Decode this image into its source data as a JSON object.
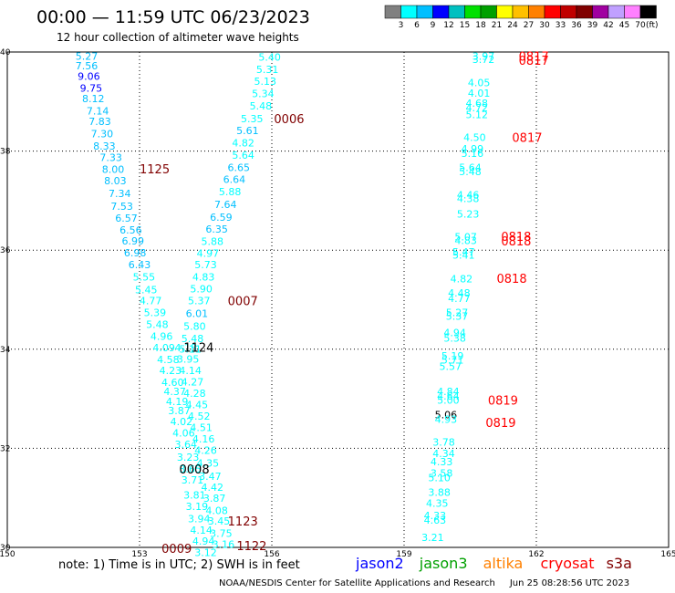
{
  "header": {
    "title": "00:00 — 11:59 UTC 06/23/2023",
    "subtitle": "12 hour collection of altimeter wave heights"
  },
  "legend": {
    "colors": [
      "#808080",
      "#00ffff",
      "#00bfff",
      "#0000ff",
      "#00c0c0",
      "#00e000",
      "#00a000",
      "#ffff00",
      "#ffc000",
      "#ff8000",
      "#ff0000",
      "#c00000",
      "#800000",
      "#a000a0",
      "#c0a0ff",
      "#ff80ff",
      "#000000"
    ],
    "labels": [
      "3",
      "6",
      "9",
      "12",
      "15",
      "18",
      "21",
      "24",
      "27",
      "30",
      "33",
      "36",
      "39",
      "42",
      "45",
      "70"
    ],
    "unit": "(ft)"
  },
  "chart_data": {
    "type": "map-track-labels",
    "lon_range": [
      150,
      165
    ],
    "lat_range": [
      30,
      40
    ],
    "x_ticks": [
      "150",
      "153",
      "156",
      "159",
      "162",
      "165"
    ],
    "y_ticks": [
      "40",
      "38",
      "36",
      "34",
      "32",
      "30"
    ],
    "points": [
      {
        "lon": 151.8,
        "lat": 39.92,
        "v": "5.27",
        "c": "#00bfff"
      },
      {
        "lon": 151.8,
        "lat": 39.72,
        "v": "7.56",
        "c": "#00bfff"
      },
      {
        "lon": 151.85,
        "lat": 39.51,
        "v": "9.06",
        "c": "#0000ff"
      },
      {
        "lon": 151.9,
        "lat": 39.27,
        "v": "9.75",
        "c": "#0000ff"
      },
      {
        "lon": 151.95,
        "lat": 39.06,
        "v": "8.12",
        "c": "#00bfff"
      },
      {
        "lon": 152.05,
        "lat": 38.81,
        "v": "7.14",
        "c": "#00bfff"
      },
      {
        "lon": 152.1,
        "lat": 38.6,
        "v": "7.83",
        "c": "#00bfff"
      },
      {
        "lon": 152.15,
        "lat": 38.35,
        "v": "7.30",
        "c": "#00bfff"
      },
      {
        "lon": 152.2,
        "lat": 38.1,
        "v": "8.33",
        "c": "#00bfff"
      },
      {
        "lon": 152.35,
        "lat": 37.87,
        "v": "7.33",
        "c": "#00bfff"
      },
      {
        "lon": 152.4,
        "lat": 37.63,
        "v": "8.00",
        "c": "#00bfff"
      },
      {
        "lon": 152.45,
        "lat": 37.4,
        "v": "8.03",
        "c": "#00bfff"
      },
      {
        "lon": 152.55,
        "lat": 37.15,
        "v": "7.34",
        "c": "#00bfff"
      },
      {
        "lon": 152.6,
        "lat": 36.89,
        "v": "7.53",
        "c": "#00bfff"
      },
      {
        "lon": 152.7,
        "lat": 36.65,
        "v": "6.57",
        "c": "#00bfff"
      },
      {
        "lon": 152.8,
        "lat": 36.41,
        "v": "6.56",
        "c": "#00bfff"
      },
      {
        "lon": 152.85,
        "lat": 36.19,
        "v": "6.99",
        "c": "#00bfff"
      },
      {
        "lon": 152.9,
        "lat": 35.95,
        "v": "6.98",
        "c": "#00bfff"
      },
      {
        "lon": 153.0,
        "lat": 35.71,
        "v": "6.43",
        "c": "#00bfff"
      },
      {
        "lon": 153.1,
        "lat": 35.46,
        "v": "5.55",
        "c": "#00ffff"
      },
      {
        "lon": 153.15,
        "lat": 35.2,
        "v": "5.45",
        "c": "#00ffff"
      },
      {
        "lon": 153.25,
        "lat": 34.98,
        "v": "4.77",
        "c": "#00ffff"
      },
      {
        "lon": 153.35,
        "lat": 34.74,
        "v": "5.39",
        "c": "#00ffff"
      },
      {
        "lon": 153.4,
        "lat": 34.5,
        "v": "5.48",
        "c": "#00ffff"
      },
      {
        "lon": 153.5,
        "lat": 34.26,
        "v": "4.96",
        "c": "#00ffff"
      },
      {
        "lon": 153.55,
        "lat": 34.03,
        "v": "4.09",
        "c": "#00ffff"
      },
      {
        "lon": 153.65,
        "lat": 33.79,
        "v": "4.58",
        "c": "#00ffff"
      },
      {
        "lon": 153.7,
        "lat": 33.57,
        "v": "4.23",
        "c": "#00ffff"
      },
      {
        "lon": 153.75,
        "lat": 33.33,
        "v": "4.60",
        "c": "#00ffff"
      },
      {
        "lon": 153.8,
        "lat": 33.15,
        "v": "4.37",
        "c": "#00ffff"
      },
      {
        "lon": 153.85,
        "lat": 32.95,
        "v": "4.19",
        "c": "#00ffff"
      },
      {
        "lon": 153.9,
        "lat": 32.76,
        "v": "3.87",
        "c": "#00ffff"
      },
      {
        "lon": 153.95,
        "lat": 32.54,
        "v": "4.02",
        "c": "#00ffff"
      },
      {
        "lon": 154.0,
        "lat": 32.31,
        "v": "4.06",
        "c": "#00ffff"
      },
      {
        "lon": 154.05,
        "lat": 32.08,
        "v": "3.64",
        "c": "#00ffff"
      },
      {
        "lon": 154.1,
        "lat": 31.82,
        "v": "3.23",
        "c": "#00ffff"
      },
      {
        "lon": 154.15,
        "lat": 31.58,
        "v": "3.65",
        "c": "#00ffff"
      },
      {
        "lon": 154.2,
        "lat": 31.36,
        "v": "3.71",
        "c": "#00ffff"
      },
      {
        "lon": 154.25,
        "lat": 31.06,
        "v": "3.81",
        "c": "#00ffff"
      },
      {
        "lon": 154.3,
        "lat": 30.83,
        "v": "3.19",
        "c": "#00ffff"
      },
      {
        "lon": 154.35,
        "lat": 30.58,
        "v": "3.94",
        "c": "#00ffff"
      },
      {
        "lon": 154.4,
        "lat": 30.35,
        "v": "4.14",
        "c": "#00ffff"
      },
      {
        "lon": 154.45,
        "lat": 30.13,
        "v": "4.94",
        "c": "#00ffff"
      },
      {
        "lon": 154.5,
        "lat": 29.9,
        "v": "3.12",
        "c": "#00ffff"
      },
      {
        "lon": 154.05,
        "lat": 34.03,
        "v": "4.18",
        "c": "#00ffff"
      },
      {
        "lon": 154.1,
        "lat": 33.8,
        "v": "3.95",
        "c": "#00ffff"
      },
      {
        "lon": 154.15,
        "lat": 33.57,
        "v": "4.14",
        "c": "#00ffff"
      },
      {
        "lon": 154.2,
        "lat": 33.34,
        "v": "4.27",
        "c": "#00ffff"
      },
      {
        "lon": 154.25,
        "lat": 33.11,
        "v": "4.28",
        "c": "#00ffff"
      },
      {
        "lon": 154.3,
        "lat": 32.88,
        "v": "4.45",
        "c": "#00ffff"
      },
      {
        "lon": 154.35,
        "lat": 32.65,
        "v": "4.52",
        "c": "#00ffff"
      },
      {
        "lon": 154.4,
        "lat": 32.42,
        "v": "4.51",
        "c": "#00ffff"
      },
      {
        "lon": 154.45,
        "lat": 32.19,
        "v": "4.16",
        "c": "#00ffff"
      },
      {
        "lon": 154.5,
        "lat": 31.96,
        "v": "4.26",
        "c": "#00ffff"
      },
      {
        "lon": 154.55,
        "lat": 31.7,
        "v": "4.35",
        "c": "#00ffff"
      },
      {
        "lon": 154.6,
        "lat": 31.44,
        "v": "3.47",
        "c": "#00ffff"
      },
      {
        "lon": 154.65,
        "lat": 31.22,
        "v": "4.42",
        "c": "#00ffff"
      },
      {
        "lon": 154.7,
        "lat": 30.99,
        "v": "3.87",
        "c": "#00ffff"
      },
      {
        "lon": 154.75,
        "lat": 30.75,
        "v": "4.08",
        "c": "#00ffff"
      },
      {
        "lon": 154.8,
        "lat": 30.53,
        "v": "3.45",
        "c": "#00ffff"
      },
      {
        "lon": 154.85,
        "lat": 30.29,
        "v": "3.75",
        "c": "#00ffff"
      },
      {
        "lon": 154.9,
        "lat": 30.06,
        "v": "3.16",
        "c": "#00ffff"
      },
      {
        "lon": 155.95,
        "lat": 39.9,
        "v": "5.40",
        "c": "#00ffff"
      },
      {
        "lon": 155.9,
        "lat": 39.65,
        "v": "5.31",
        "c": "#00ffff"
      },
      {
        "lon": 155.85,
        "lat": 39.41,
        "v": "5.13",
        "c": "#00ffff"
      },
      {
        "lon": 155.8,
        "lat": 39.16,
        "v": "5.34",
        "c": "#00ffff"
      },
      {
        "lon": 155.75,
        "lat": 38.91,
        "v": "5.48",
        "c": "#00ffff"
      },
      {
        "lon": 155.55,
        "lat": 38.66,
        "v": "5.35",
        "c": "#00ffff"
      },
      {
        "lon": 155.45,
        "lat": 38.42,
        "v": "5.61",
        "c": "#00bfff"
      },
      {
        "lon": 155.35,
        "lat": 38.17,
        "v": "4.82",
        "c": "#00ffff"
      },
      {
        "lon": 155.35,
        "lat": 37.92,
        "v": "5.64",
        "c": "#00ffff"
      },
      {
        "lon": 155.25,
        "lat": 37.67,
        "v": "6.65",
        "c": "#00bfff"
      },
      {
        "lon": 155.15,
        "lat": 37.43,
        "v": "6.64",
        "c": "#00bfff"
      },
      {
        "lon": 155.05,
        "lat": 37.18,
        "v": "5.88",
        "c": "#00ffff"
      },
      {
        "lon": 154.95,
        "lat": 36.92,
        "v": "7.64",
        "c": "#00bfff"
      },
      {
        "lon": 154.85,
        "lat": 36.67,
        "v": "6.59",
        "c": "#00bfff"
      },
      {
        "lon": 154.75,
        "lat": 36.43,
        "v": "6.35",
        "c": "#00bfff"
      },
      {
        "lon": 154.65,
        "lat": 36.18,
        "v": "5.88",
        "c": "#00ffff"
      },
      {
        "lon": 154.55,
        "lat": 35.94,
        "v": "4.97",
        "c": "#00ffff"
      },
      {
        "lon": 154.5,
        "lat": 35.71,
        "v": "5.73",
        "c": "#00ffff"
      },
      {
        "lon": 154.45,
        "lat": 35.46,
        "v": "4.83",
        "c": "#00ffff"
      },
      {
        "lon": 154.4,
        "lat": 35.22,
        "v": "5.90",
        "c": "#00ffff"
      },
      {
        "lon": 154.35,
        "lat": 34.98,
        "v": "5.37",
        "c": "#00ffff"
      },
      {
        "lon": 154.3,
        "lat": 34.72,
        "v": "6.01",
        "c": "#00bfff"
      },
      {
        "lon": 154.25,
        "lat": 34.47,
        "v": "5.80",
        "c": "#00ffff"
      },
      {
        "lon": 154.2,
        "lat": 34.22,
        "v": "5.48",
        "c": "#00ffff"
      },
      {
        "lon": 154.15,
        "lat": 34.01,
        "v": "5.11",
        "c": "#00ffff"
      },
      {
        "lon": 160.8,
        "lat": 39.92,
        "v": "3.97",
        "c": "#00ffff"
      },
      {
        "lon": 160.8,
        "lat": 39.85,
        "v": "3.72",
        "c": "#00ffff"
      },
      {
        "lon": 160.7,
        "lat": 39.38,
        "v": "4.05",
        "c": "#00ffff"
      },
      {
        "lon": 160.7,
        "lat": 39.17,
        "v": "4.01",
        "c": "#00ffff"
      },
      {
        "lon": 160.65,
        "lat": 38.97,
        "v": "4.68",
        "c": "#00ffff"
      },
      {
        "lon": 160.65,
        "lat": 38.88,
        "v": "4.72",
        "c": "#00ffff"
      },
      {
        "lon": 160.65,
        "lat": 38.74,
        "v": "5.12",
        "c": "#00ffff"
      },
      {
        "lon": 160.6,
        "lat": 38.28,
        "v": "4.50",
        "c": "#00ffff"
      },
      {
        "lon": 160.55,
        "lat": 38.05,
        "v": "4.99",
        "c": "#00ffff"
      },
      {
        "lon": 160.55,
        "lat": 37.96,
        "v": "5.16",
        "c": "#00ffff"
      },
      {
        "lon": 160.5,
        "lat": 37.67,
        "v": "5.64",
        "c": "#00ffff"
      },
      {
        "lon": 160.5,
        "lat": 37.59,
        "v": "5.48",
        "c": "#00ffff"
      },
      {
        "lon": 160.45,
        "lat": 37.12,
        "v": "4.46",
        "c": "#00ffff"
      },
      {
        "lon": 160.45,
        "lat": 37.04,
        "v": "4.38",
        "c": "#00ffff"
      },
      {
        "lon": 160.45,
        "lat": 36.73,
        "v": "5.23",
        "c": "#00ffff"
      },
      {
        "lon": 160.4,
        "lat": 36.27,
        "v": "5.07",
        "c": "#00ffff"
      },
      {
        "lon": 160.4,
        "lat": 36.2,
        "v": "4.83",
        "c": "#00ffff"
      },
      {
        "lon": 160.35,
        "lat": 35.97,
        "v": "5.47",
        "c": "#00ffff"
      },
      {
        "lon": 160.35,
        "lat": 35.9,
        "v": "5.41",
        "c": "#00ffff"
      },
      {
        "lon": 160.3,
        "lat": 35.42,
        "v": "4.82",
        "c": "#00ffff"
      },
      {
        "lon": 160.25,
        "lat": 35.14,
        "v": "4.48",
        "c": "#00ffff"
      },
      {
        "lon": 160.25,
        "lat": 35.03,
        "v": "4.77",
        "c": "#00ffff"
      },
      {
        "lon": 160.2,
        "lat": 34.74,
        "v": "5.27",
        "c": "#00ffff"
      },
      {
        "lon": 160.2,
        "lat": 34.67,
        "v": "5.37",
        "c": "#00ffff"
      },
      {
        "lon": 160.15,
        "lat": 34.34,
        "v": "4.94",
        "c": "#00ffff"
      },
      {
        "lon": 160.15,
        "lat": 34.23,
        "v": "5.38",
        "c": "#00ffff"
      },
      {
        "lon": 160.1,
        "lat": 33.87,
        "v": "5.19",
        "c": "#00ffff"
      },
      {
        "lon": 160.1,
        "lat": 33.78,
        "v": "5.71",
        "c": "#00ffff"
      },
      {
        "lon": 160.05,
        "lat": 33.66,
        "v": "5.57",
        "c": "#00ffff"
      },
      {
        "lon": 160.0,
        "lat": 33.15,
        "v": "4.84",
        "c": "#00ffff"
      },
      {
        "lon": 160.0,
        "lat": 33.06,
        "v": "4.64",
        "c": "#00ffff"
      },
      {
        "lon": 160.0,
        "lat": 32.97,
        "v": "5.00",
        "c": "#00ffff"
      },
      {
        "lon": 159.95,
        "lat": 32.68,
        "v": "5.06",
        "c": "#000000"
      },
      {
        "lon": 159.95,
        "lat": 32.59,
        "v": "4.93",
        "c": "#00ffff"
      },
      {
        "lon": 159.9,
        "lat": 32.13,
        "v": "3.78",
        "c": "#00ffff"
      },
      {
        "lon": 159.9,
        "lat": 31.9,
        "v": "4.34",
        "c": "#00ffff"
      },
      {
        "lon": 159.85,
        "lat": 31.73,
        "v": "4.33",
        "c": "#00ffff"
      },
      {
        "lon": 159.85,
        "lat": 31.5,
        "v": "3.58",
        "c": "#00ffff"
      },
      {
        "lon": 159.8,
        "lat": 31.41,
        "v": "5.10",
        "c": "#00ffff"
      },
      {
        "lon": 159.8,
        "lat": 31.11,
        "v": "3.88",
        "c": "#00ffff"
      },
      {
        "lon": 159.75,
        "lat": 30.89,
        "v": "4.35",
        "c": "#00ffff"
      },
      {
        "lon": 159.7,
        "lat": 30.64,
        "v": "4.33",
        "c": "#00ffff"
      },
      {
        "lon": 159.7,
        "lat": 30.55,
        "v": "4.63",
        "c": "#00ffff"
      },
      {
        "lon": 159.65,
        "lat": 30.2,
        "v": "3.21",
        "c": "#00ffff"
      }
    ],
    "time_labels": [
      {
        "lon": 153.0,
        "lat": 37.64,
        "t": "1125",
        "c": "#800000"
      },
      {
        "lon": 156.05,
        "lat": 38.66,
        "t": "0006",
        "c": "#800000"
      },
      {
        "lon": 155.0,
        "lat": 34.98,
        "t": "0007",
        "c": "#800000"
      },
      {
        "lon": 154.0,
        "lat": 34.04,
        "t": "1124",
        "c": "#000000"
      },
      {
        "lon": 153.9,
        "lat": 31.58,
        "t": "0008",
        "c": "#000000"
      },
      {
        "lon": 155.0,
        "lat": 30.53,
        "t": "1123",
        "c": "#800000"
      },
      {
        "lon": 155.2,
        "lat": 30.04,
        "t": "1122",
        "c": "#800000"
      },
      {
        "lon": 153.5,
        "lat": 29.98,
        "t": "0009",
        "c": "#800000"
      },
      {
        "lon": 161.6,
        "lat": 39.92,
        "t": "0817",
        "c": "#ff0000"
      },
      {
        "lon": 161.6,
        "lat": 39.83,
        "t": "0817",
        "c": "#ff0000"
      },
      {
        "lon": 161.45,
        "lat": 38.28,
        "t": "0817",
        "c": "#ff0000"
      },
      {
        "lon": 161.2,
        "lat": 36.28,
        "t": "0818",
        "c": "#ff0000"
      },
      {
        "lon": 161.2,
        "lat": 36.19,
        "t": "0818",
        "c": "#ff0000"
      },
      {
        "lon": 161.1,
        "lat": 35.43,
        "t": "0818",
        "c": "#ff0000"
      },
      {
        "lon": 160.9,
        "lat": 32.97,
        "t": "0819",
        "c": "#ff0000"
      },
      {
        "lon": 160.85,
        "lat": 32.52,
        "t": "0819",
        "c": "#ff0000"
      }
    ]
  },
  "footer": {
    "note": "note:  1) Time is in UTC; 2) SWH is in feet",
    "satellites": [
      {
        "name": "jason2",
        "color": "#0000ff"
      },
      {
        "name": "jason3",
        "color": "#00a000"
      },
      {
        "name": "altika",
        "color": "#ff8000"
      },
      {
        "name": "cryosat",
        "color": "#ff0000"
      },
      {
        "name": "s3a",
        "color": "#800000"
      }
    ],
    "credit": "NOAA/NESDIS Center for Satellite Applications and Research",
    "timestamp": "Jun 25 08:28:56 UTC 2023"
  }
}
